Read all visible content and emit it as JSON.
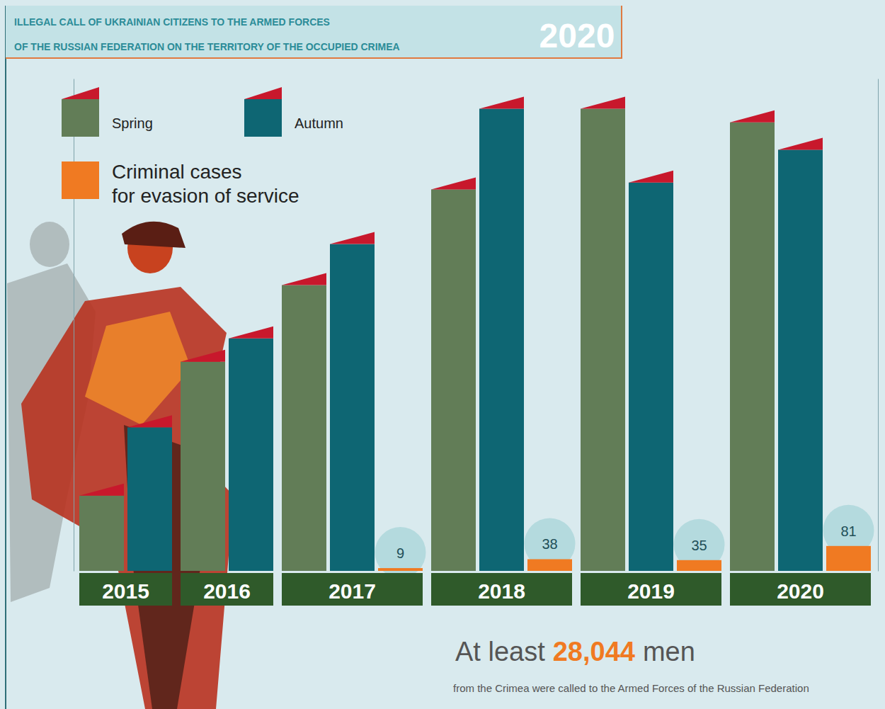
{
  "chart_data": {
    "type": "bar",
    "title": [
      "ILLEGAL CALL OF UKRAINIAN CITIZENS TO THE ARMED FORCES",
      "OF THE RUSSIAN FEDERATION ON THE TERRITORY OF THE OCCUPIED CRIMEA"
    ],
    "badge": "2020",
    "categories": [
      "2015",
      "2016",
      "2017",
      "2018",
      "2019",
      "2020"
    ],
    "series": [
      {
        "name": "Spring",
        "color": "#627d57",
        "values": [
          550,
          1530,
          2090,
          2790,
          3380,
          3280
        ]
      },
      {
        "name": "Autumn",
        "color": "#0e6673",
        "values": [
          1050,
          1700,
          2390,
          3380,
          2840,
          3080
        ]
      },
      {
        "name": "Criminal cases for evasion of service",
        "color": "#f07a22",
        "axis": "y2",
        "data_labels": true,
        "values": [
          null,
          null,
          9,
          38,
          35,
          81
        ]
      }
    ],
    "ylim": [
      0,
      3600
    ],
    "y2lim": [
      0,
      1600
    ],
    "tick_labels": false,
    "legend": "top-left",
    "annotation": {
      "prefix": "At least",
      "value": "28,044",
      "suffix": "men",
      "text": "from the Crimea were called to the Armed Forces of the Russian Federation"
    }
  }
}
